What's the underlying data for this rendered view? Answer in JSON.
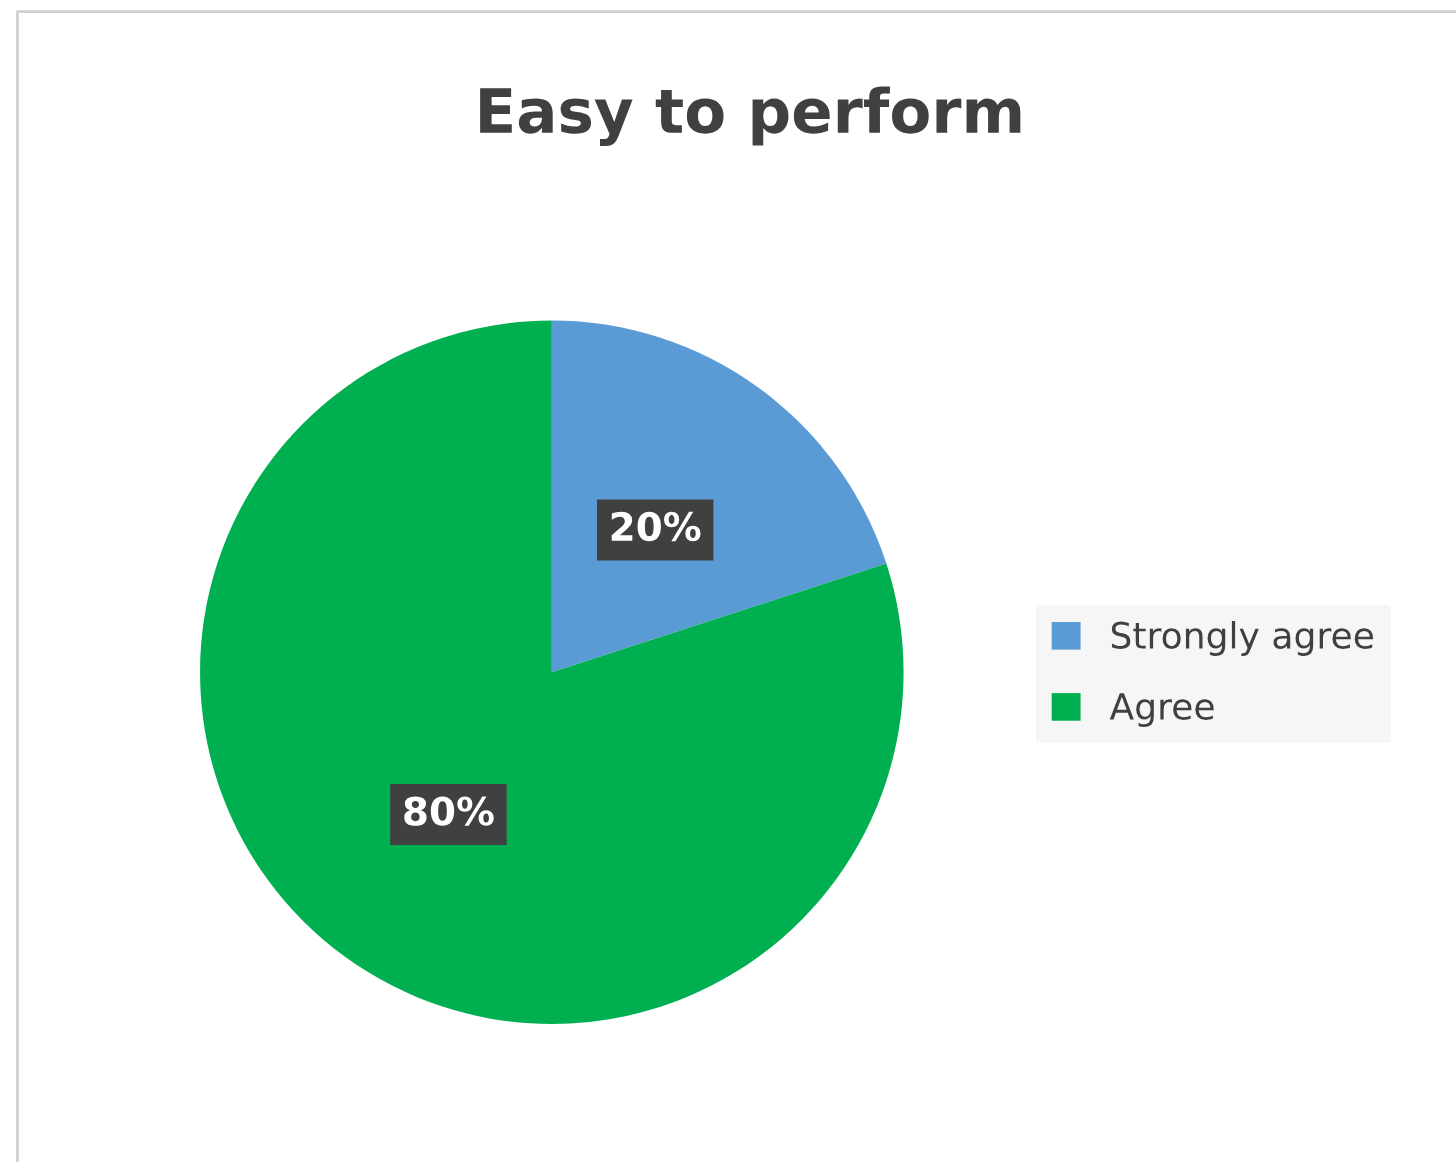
{
  "chart_data": {
    "type": "pie",
    "title": "Easy to perform",
    "categories": [
      "Strongly agree",
      "Agree"
    ],
    "values": [
      20,
      80
    ],
    "colors": [
      "#5b9bd5",
      "#00b050"
    ],
    "value_labels": [
      "20%",
      "80%"
    ],
    "legend": "right"
  }
}
